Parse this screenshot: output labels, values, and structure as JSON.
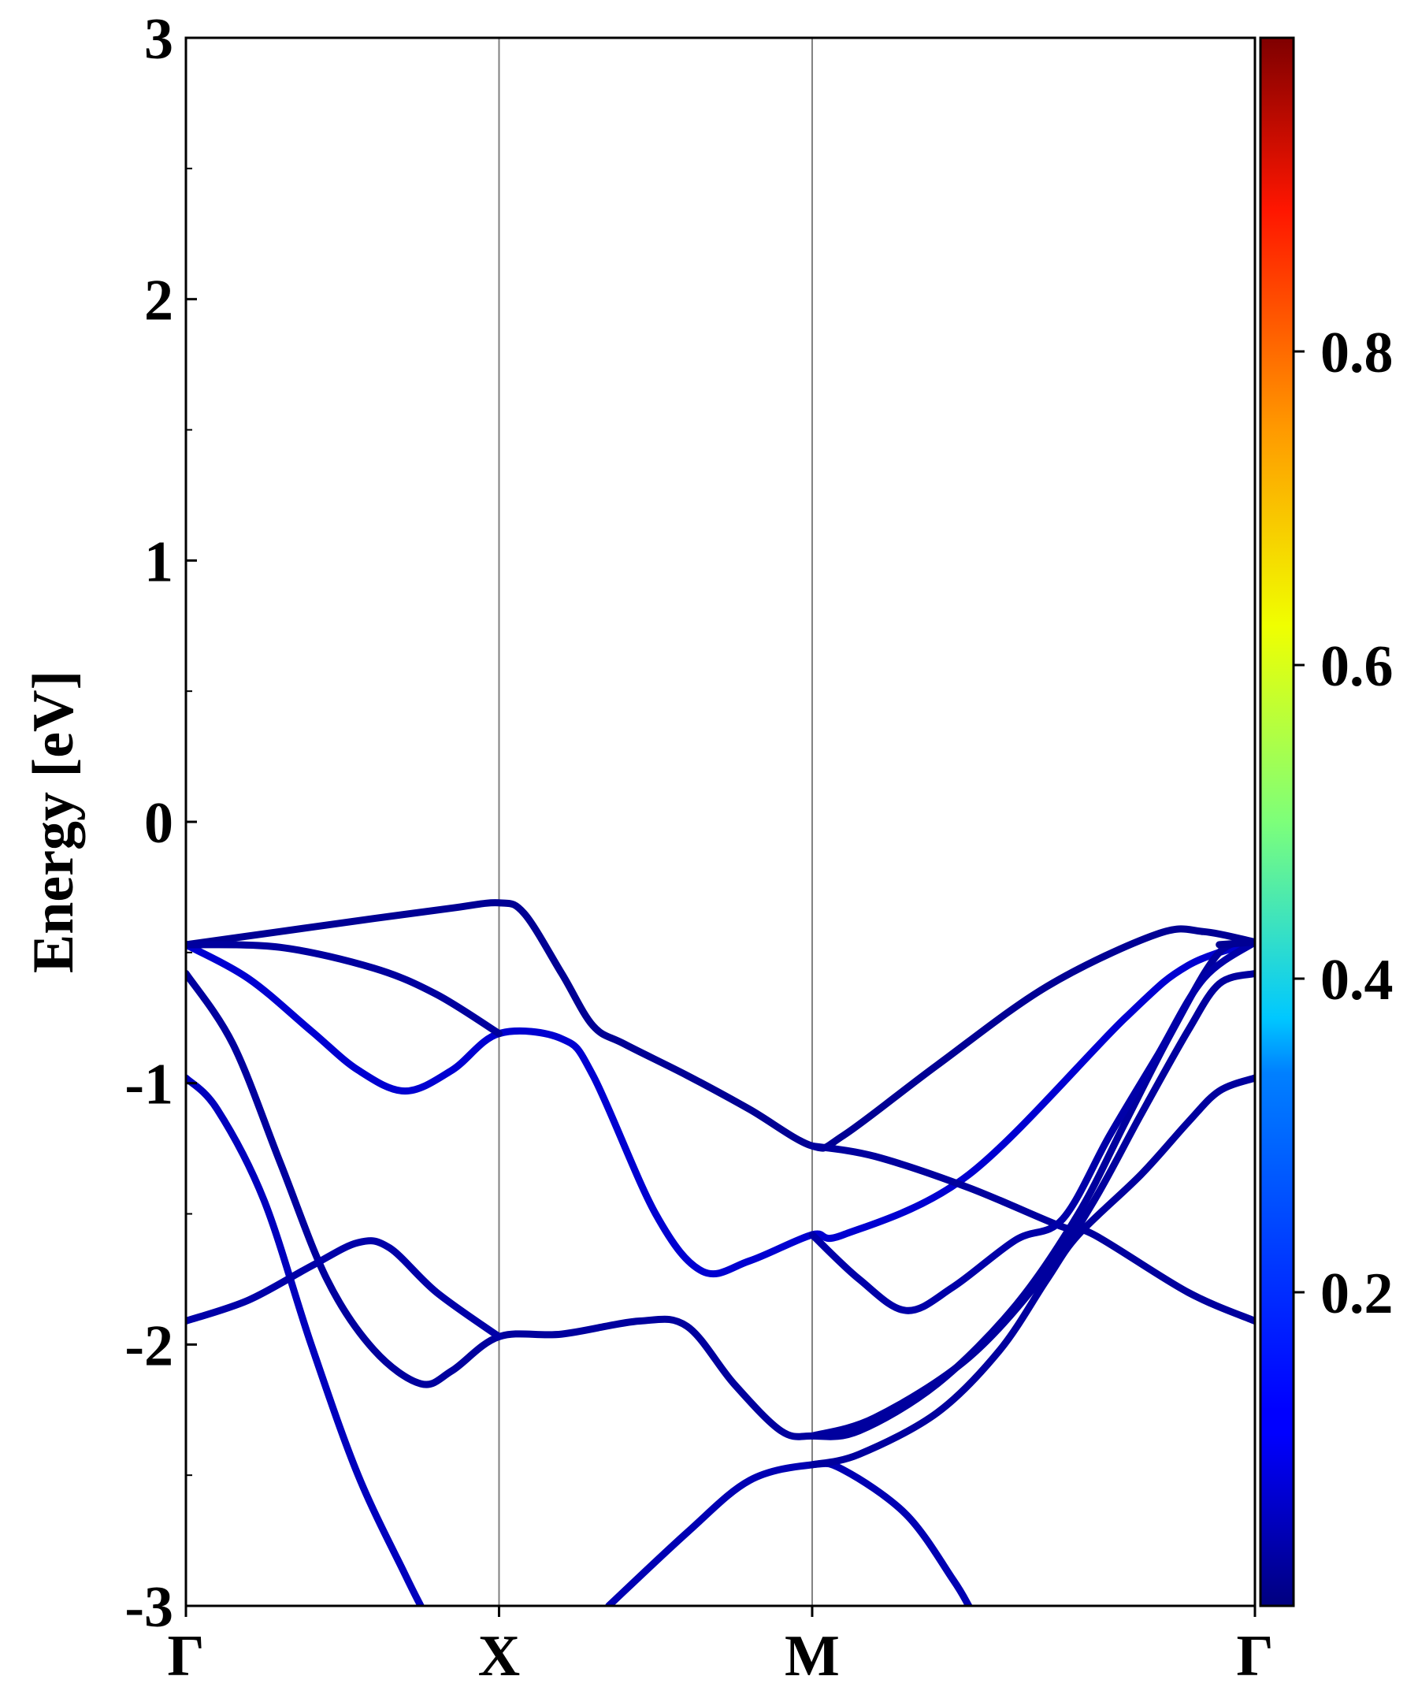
{
  "chart_data": {
    "type": "line",
    "ylabel": "Energy [eV]",
    "xlabel": "",
    "ylim": [
      -3,
      3
    ],
    "yticks": [
      "3",
      "2",
      "1",
      "0",
      "-1",
      "-2",
      "-3"
    ],
    "y_minor_step": 0.5,
    "xlim": [
      0,
      3.414
    ],
    "kpoints": [
      {
        "label": "Γ",
        "x": 0
      },
      {
        "label": "X",
        "x": 1.0
      },
      {
        "label": "M",
        "x": 2.0
      },
      {
        "label": "Γ",
        "x": 3.414
      }
    ],
    "kpoint_separators": true,
    "colorbar": {
      "colormap": "jet",
      "range": [
        0,
        1
      ],
      "ticks": [
        "0.8",
        "0.6",
        "0.4",
        "0.2"
      ],
      "tick_values": [
        0.8,
        0.6,
        0.4,
        0.2
      ]
    },
    "bands": [
      {
        "weight": 0.02,
        "points": [
          [
            0,
            -0.47
          ],
          [
            0.3,
            -0.42
          ],
          [
            0.6,
            -0.37
          ],
          [
            0.85,
            -0.33
          ],
          [
            1.0,
            -0.31
          ],
          [
            1.08,
            -0.35
          ],
          [
            1.2,
            -0.58
          ],
          [
            1.3,
            -0.78
          ],
          [
            1.4,
            -0.85
          ],
          [
            1.6,
            -0.97
          ],
          [
            1.8,
            -1.1
          ],
          [
            2.0,
            -1.24
          ],
          [
            2.1,
            -1.2
          ],
          [
            2.4,
            -0.93
          ],
          [
            2.75,
            -0.63
          ],
          [
            3.1,
            -0.43
          ],
          [
            3.25,
            -0.42
          ],
          [
            3.414,
            -0.46
          ]
        ]
      },
      {
        "weight": 0.08,
        "points": [
          [
            0,
            -0.47
          ],
          [
            0.2,
            -0.6
          ],
          [
            0.4,
            -0.8
          ],
          [
            0.55,
            -0.95
          ],
          [
            0.7,
            -1.03
          ],
          [
            0.85,
            -0.95
          ],
          [
            1.0,
            -0.81
          ],
          [
            1.2,
            -0.83
          ],
          [
            1.3,
            -0.97
          ],
          [
            1.5,
            -1.5
          ],
          [
            1.65,
            -1.72
          ],
          [
            1.8,
            -1.68
          ],
          [
            2.0,
            -1.58
          ],
          [
            2.1,
            -1.58
          ],
          [
            2.5,
            -1.35
          ],
          [
            3.0,
            -0.75
          ],
          [
            3.2,
            -0.55
          ],
          [
            3.414,
            -0.46
          ]
        ]
      },
      {
        "weight": 0.03,
        "points": [
          [
            0,
            -0.47
          ],
          [
            0.3,
            -0.48
          ],
          [
            0.6,
            -0.56
          ],
          [
            0.8,
            -0.66
          ],
          [
            1.0,
            -0.81
          ]
        ]
      },
      {
        "weight": 0.03,
        "points": [
          [
            0,
            -0.58
          ],
          [
            0.15,
            -0.85
          ],
          [
            0.3,
            -1.3
          ],
          [
            0.45,
            -1.75
          ],
          [
            0.6,
            -2.02
          ],
          [
            0.75,
            -2.15
          ],
          [
            0.85,
            -2.1
          ],
          [
            1.0,
            -1.97
          ],
          [
            1.2,
            -1.96
          ],
          [
            1.45,
            -1.91
          ],
          [
            1.6,
            -1.93
          ],
          [
            1.75,
            -2.15
          ],
          [
            1.9,
            -2.33
          ],
          [
            2.0,
            -2.35
          ],
          [
            2.15,
            -2.33
          ],
          [
            2.4,
            -2.15
          ],
          [
            2.65,
            -1.85
          ],
          [
            2.85,
            -1.5
          ],
          [
            3.0,
            -1.15
          ],
          [
            3.15,
            -0.8
          ],
          [
            3.3,
            -0.5
          ],
          [
            3.414,
            -0.46
          ]
        ]
      },
      {
        "weight": 0.06,
        "points": [
          [
            0,
            -0.98
          ],
          [
            0.1,
            -1.1
          ],
          [
            0.25,
            -1.45
          ],
          [
            0.4,
            -2.0
          ],
          [
            0.55,
            -2.5
          ],
          [
            0.7,
            -2.88
          ],
          [
            0.75,
            -3.0
          ]
        ]
      },
      {
        "weight": 0.04,
        "points": [
          [
            0,
            -1.91
          ],
          [
            0.2,
            -1.83
          ],
          [
            0.4,
            -1.7
          ],
          [
            0.55,
            -1.61
          ],
          [
            0.65,
            -1.63
          ],
          [
            0.8,
            -1.8
          ],
          [
            1.0,
            -1.97
          ]
        ]
      },
      {
        "weight": 0.05,
        "points": [
          [
            1.35,
            -3.0
          ],
          [
            1.6,
            -2.72
          ],
          [
            1.8,
            -2.52
          ],
          [
            2.0,
            -2.46
          ],
          [
            2.1,
            -2.48
          ],
          [
            2.3,
            -2.65
          ],
          [
            2.45,
            -2.9
          ],
          [
            2.5,
            -3.0
          ]
        ]
      },
      {
        "weight": 0.03,
        "points": [
          [
            2.0,
            -1.24
          ],
          [
            2.2,
            -1.28
          ],
          [
            2.5,
            -1.4
          ],
          [
            2.8,
            -1.55
          ],
          [
            2.9,
            -1.58
          ],
          [
            3.2,
            -1.8
          ],
          [
            3.414,
            -1.91
          ]
        ]
      },
      {
        "weight": 0.03,
        "points": [
          [
            2.0,
            -2.46
          ],
          [
            2.15,
            -2.42
          ],
          [
            2.4,
            -2.26
          ],
          [
            2.6,
            -2.02
          ],
          [
            2.75,
            -1.75
          ],
          [
            2.85,
            -1.58
          ],
          [
            3.05,
            -1.35
          ],
          [
            3.2,
            -1.15
          ],
          [
            3.3,
            -1.03
          ],
          [
            3.414,
            -0.98
          ]
        ]
      },
      {
        "weight": 0.03,
        "points": [
          [
            2.0,
            -2.35
          ],
          [
            2.2,
            -2.28
          ],
          [
            2.5,
            -2.05
          ],
          [
            2.75,
            -1.72
          ],
          [
            2.9,
            -1.45
          ],
          [
            3.05,
            -1.12
          ],
          [
            3.2,
            -0.8
          ],
          [
            3.3,
            -0.62
          ],
          [
            3.414,
            -0.58
          ]
        ]
      },
      {
        "weight": 0.04,
        "points": [
          [
            2.0,
            -1.58
          ],
          [
            2.15,
            -1.75
          ],
          [
            2.3,
            -1.87
          ],
          [
            2.45,
            -1.78
          ],
          [
            2.65,
            -1.6
          ],
          [
            2.8,
            -1.52
          ],
          [
            2.95,
            -1.2
          ],
          [
            3.1,
            -0.9
          ],
          [
            3.25,
            -0.6
          ],
          [
            3.414,
            -0.46
          ]
        ]
      },
      {
        "weight": 0.02,
        "points": [
          [
            3.414,
            -0.46
          ],
          [
            3.3,
            -0.47
          ]
        ]
      }
    ]
  }
}
